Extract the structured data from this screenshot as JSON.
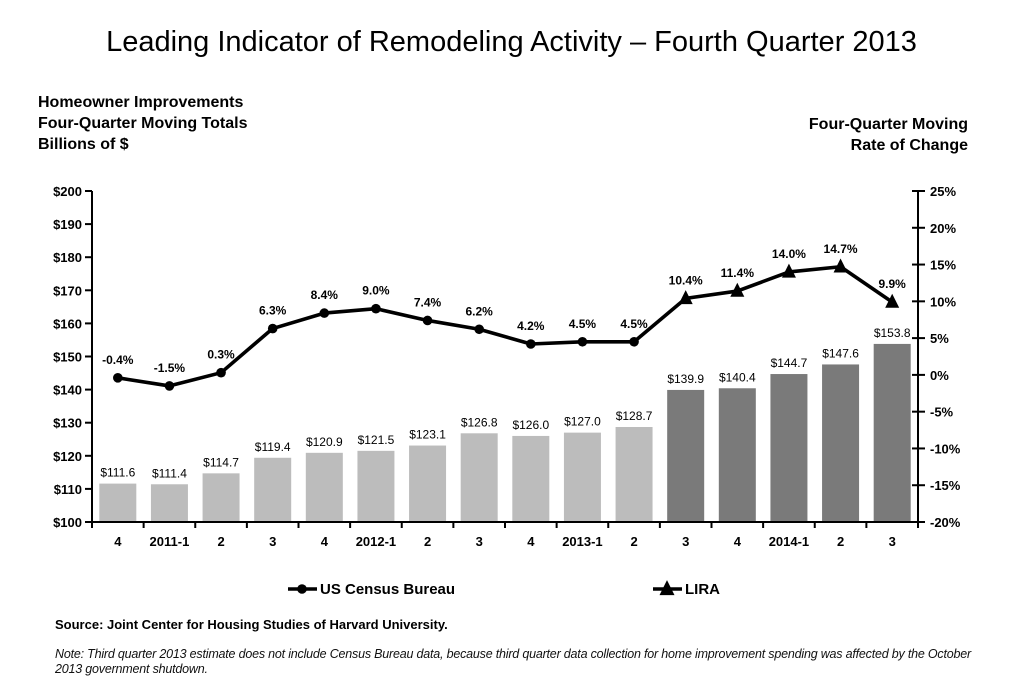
{
  "title": "Leading Indicator of Remodeling Activity – Fourth Quarter 2013",
  "left_header": {
    "lines": [
      "Homeowner Improvements",
      "Four-Quarter Moving Totals",
      "Billions of $"
    ]
  },
  "right_header": {
    "lines": [
      "Four-Quarter Moving",
      "Rate of Change"
    ]
  },
  "source": "Source: Joint Center for Housing Studies of Harvard University.",
  "note": "Note: Third quarter 2013 estimate does not include Census Bureau data, because third quarter data collection for home improvement spending was affected by the October 2013 government shutdown.",
  "colors": {
    "bar_actual": "#bcbcbc",
    "bar_projected": "#7a7a7a",
    "line": "#000000",
    "axis": "#000000",
    "text": "#000000"
  },
  "chart_data": {
    "type": "bar+line combo",
    "categories": [
      "4",
      "2011-1",
      "2",
      "3",
      "4",
      "2012-1",
      "2",
      "3",
      "4",
      "2013-1",
      "2",
      "3",
      "4",
      "2014-1",
      "2",
      "3"
    ],
    "series": [
      {
        "name": "Homeowner Improvements Four-Quarter Moving Totals (Billions of $)",
        "type": "bar",
        "axis": "left",
        "values": [
          111.6,
          111.4,
          114.7,
          119.4,
          120.9,
          121.5,
          123.1,
          126.8,
          126.0,
          127.0,
          128.7,
          139.9,
          140.4,
          144.7,
          147.6,
          153.8
        ],
        "labels": [
          "$111.6",
          "$111.4",
          "$114.7",
          "$119.4",
          "$120.9",
          "$121.5",
          "$123.1",
          "$126.8",
          "$126.0",
          "$127.0",
          "$128.7",
          "$139.9",
          "$140.4",
          "$144.7",
          "$147.6",
          "$153.8"
        ],
        "projected_start_index": 11
      },
      {
        "name": "Four-Quarter Moving Rate of Change (%)",
        "type": "line",
        "axis": "right",
        "values": [
          -0.4,
          -1.5,
          0.3,
          6.3,
          8.4,
          9.0,
          7.4,
          6.2,
          4.2,
          4.5,
          4.5,
          10.4,
          11.4,
          14.0,
          14.7,
          9.9
        ],
        "labels": [
          "-0.4%",
          "-1.5%",
          "0.3%",
          "6.3%",
          "8.4%",
          "9.0%",
          "7.4%",
          "6.2%",
          "4.2%",
          "4.5%",
          "4.5%",
          "10.4%",
          "11.4%",
          "14.0%",
          "14.7%",
          "9.9%"
        ],
        "marker_actual": "circle",
        "marker_projected": "triangle",
        "projected_start_index": 11
      }
    ],
    "left_axis": {
      "min": 100,
      "max": 200,
      "step": 10,
      "tick_labels": [
        "$100",
        "$110",
        "$120",
        "$130",
        "$140",
        "$150",
        "$160",
        "$170",
        "$180",
        "$190",
        "$200"
      ]
    },
    "right_axis": {
      "min": -20,
      "max": 25,
      "step": 5,
      "tick_labels": [
        "-20%",
        "-15%",
        "-10%",
        "-5%",
        "0%",
        "5%",
        "10%",
        "15%",
        "20%",
        "25%"
      ]
    },
    "legend": [
      {
        "label": "US Census Bureau",
        "marker": "circle"
      },
      {
        "label": "LIRA",
        "marker": "triangle"
      }
    ],
    "grid": false,
    "legend_position": "bottom"
  }
}
